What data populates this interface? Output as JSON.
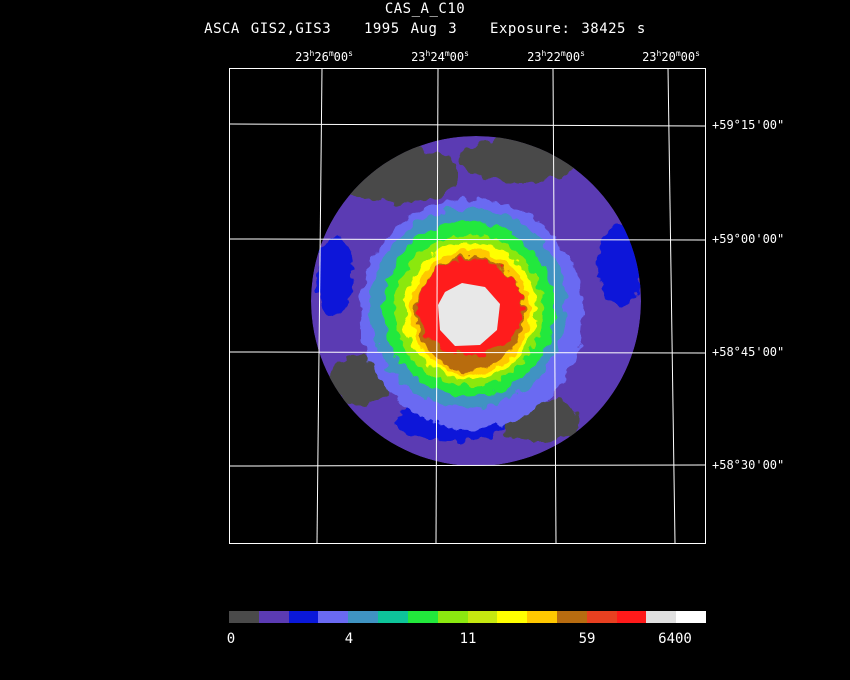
{
  "header": {
    "object": "CAS_A_C10",
    "instrument": "ASCA GIS2,GIS3",
    "date": "1995 Aug  3",
    "exposure": "Exposure: 38425 s"
  },
  "ra_labels": [
    {
      "h": "23",
      "m": "26",
      "s": "00"
    },
    {
      "h": "23",
      "m": "24",
      "s": "00"
    },
    {
      "h": "23",
      "m": "22",
      "s": "00"
    },
    {
      "h": "23",
      "m": "20",
      "s": "00"
    }
  ],
  "dec_labels": [
    "+59°15'00\"",
    "+59°00'00\"",
    "+58°45'00\"",
    "+58°30'00\""
  ],
  "colorbar": {
    "colors": [
      "#4a4a4a",
      "#5b3bb3",
      "#0a18d9",
      "#6a6af2",
      "#3f93c2",
      "#0ec49a",
      "#22e83c",
      "#8be810",
      "#c5e810",
      "#ffff00",
      "#ffc800",
      "#b86c10",
      "#e84020",
      "#ff1a1a",
      "#e0e0e0",
      "#ffffff"
    ],
    "labels": [
      "0",
      "4",
      "11",
      "59",
      "6400"
    ]
  },
  "image": {
    "palette": {
      "rim_gray": "#4a4a4a",
      "purple": "#5b3bb3",
      "blue": "#0a18d9",
      "lavender": "#6a6af2",
      "teal": "#3f93c2",
      "green": "#22e83c",
      "lime": "#8be810",
      "yellow": "#ffff00",
      "orange": "#ffc800",
      "brown": "#b86c10",
      "red": "#ff1a1a",
      "white": "#e8e8e8"
    }
  }
}
